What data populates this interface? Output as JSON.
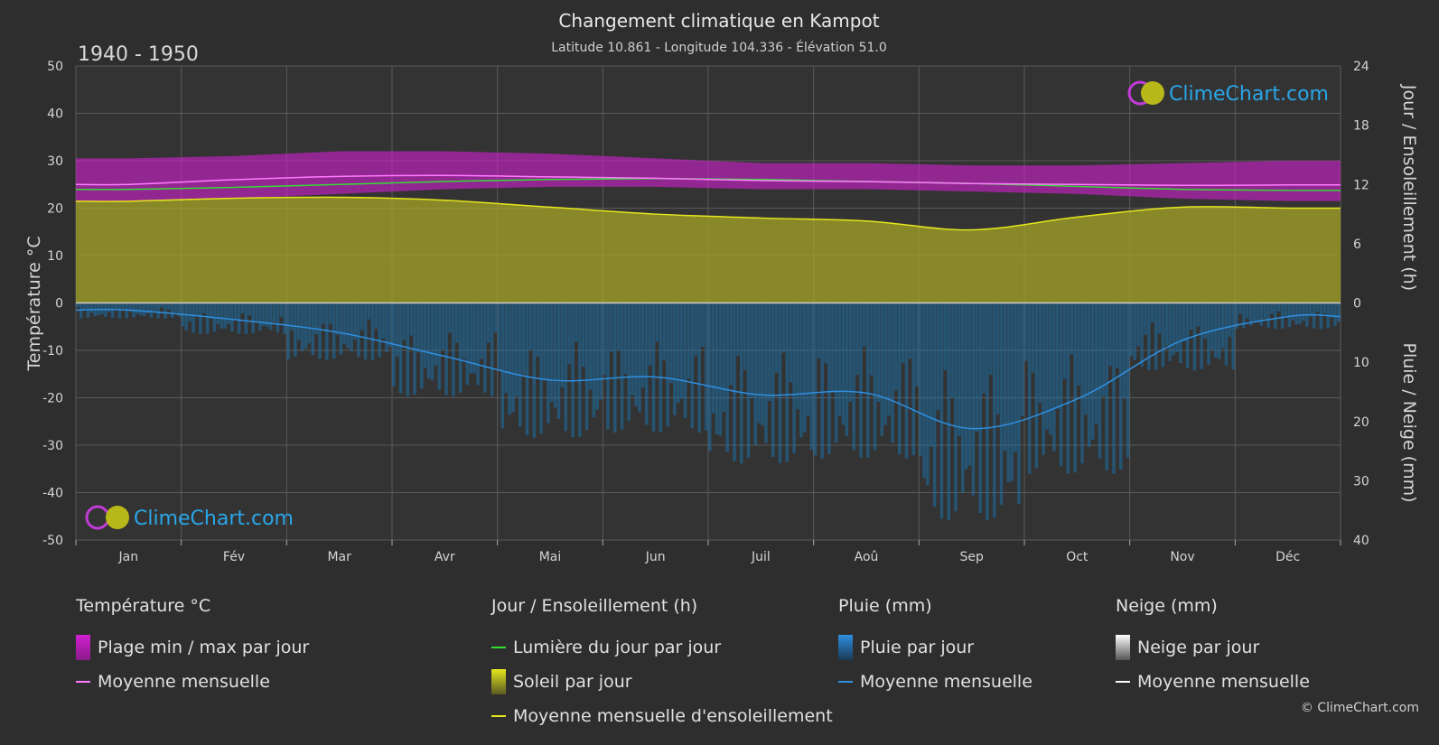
{
  "header": {
    "title": "Changement climatique en Kampot",
    "subtitle": "Latitude 10.861 - Longitude 104.336 - Élévation 51.0",
    "period": "1940 - 1950"
  },
  "brand": {
    "name": "ClimeChart.com",
    "copyright": "© ClimeChart.com"
  },
  "colors": {
    "temp_band": "#d21fd2",
    "temp_mean": "#ff7bff",
    "daylight": "#33dd33",
    "sunshine_fill": "#a6a627",
    "sunshine_mean": "#e6e61e",
    "rain": "#1c6fa8",
    "rain_mean": "#2f8fe0",
    "snow_mean": "#ffffff",
    "brand": "#2aa6e8"
  },
  "chart_data": {
    "type": "area",
    "categories": [
      "Jan",
      "Fév",
      "Mar",
      "Avr",
      "Mai",
      "Jun",
      "Juil",
      "Aoû",
      "Sep",
      "Oct",
      "Nov",
      "Déc"
    ],
    "left_axis": {
      "title": "Température °C",
      "range": [
        -50,
        50
      ],
      "ticks": [
        50,
        40,
        30,
        20,
        10,
        0,
        -10,
        -20,
        -30,
        -40,
        -50
      ]
    },
    "right_axis_top": {
      "title": "Jour / Ensoleillement (h)",
      "range": [
        0,
        24
      ],
      "ticks": [
        24,
        18,
        12,
        6,
        0
      ]
    },
    "right_axis_bottom": {
      "title": "Pluie / Neige (mm)",
      "range": [
        0,
        40
      ],
      "ticks": [
        0,
        10,
        20,
        30,
        40
      ]
    },
    "grid": true,
    "series": [
      {
        "name": "Plage min / max par jour",
        "kind": "band",
        "axis": "temp",
        "min": [
          21.5,
          22.0,
          23.0,
          24.0,
          24.5,
          24.5,
          24.0,
          24.0,
          23.5,
          23.0,
          22.0,
          21.5
        ],
        "max": [
          30.5,
          31.0,
          32.0,
          32.0,
          31.5,
          30.5,
          29.5,
          29.5,
          29.0,
          29.0,
          29.5,
          30.0
        ]
      },
      {
        "name": "Moyenne mensuelle",
        "kind": "line",
        "axis": "temp",
        "color_key": "temp_mean",
        "values": [
          25.0,
          26.0,
          26.7,
          26.9,
          26.6,
          26.3,
          25.8,
          25.6,
          25.2,
          25.0,
          24.8,
          24.9
        ]
      },
      {
        "name": "Lumière du jour par jour",
        "kind": "line",
        "axis": "sun",
        "color_key": "daylight",
        "values": [
          11.5,
          11.7,
          12.0,
          12.3,
          12.5,
          12.6,
          12.5,
          12.3,
          12.1,
          11.8,
          11.5,
          11.4
        ]
      },
      {
        "name": "Soleil par jour",
        "kind": "area",
        "axis": "sun",
        "color_key": "sunshine_fill",
        "values": [
          10.3,
          10.6,
          10.7,
          10.4,
          9.7,
          9.0,
          8.6,
          8.3,
          7.4,
          8.7,
          9.7,
          9.6
        ]
      },
      {
        "name": "Moyenne mensuelle d'ensoleillement",
        "kind": "line",
        "axis": "sun",
        "color_key": "sunshine_mean",
        "values": [
          10.3,
          10.6,
          10.7,
          10.4,
          9.7,
          9.0,
          8.6,
          8.3,
          7.4,
          8.7,
          9.7,
          9.6
        ]
      },
      {
        "name": "Pluie par jour",
        "kind": "bars",
        "axis": "rain",
        "color_key": "rain",
        "values": [
          1.5,
          3.0,
          5.5,
          9.0,
          13.0,
          12.5,
          15.5,
          15.0,
          21.0,
          16.5,
          6.5,
          2.5
        ]
      },
      {
        "name": "Moyenne mensuelle",
        "kind": "line",
        "axis": "rain",
        "color_key": "rain_mean",
        "values": [
          1.2,
          2.8,
          5.0,
          9.0,
          13.0,
          12.5,
          15.5,
          15.2,
          21.2,
          16.2,
          6.3,
          2.3
        ]
      }
    ]
  },
  "legend": {
    "temperature": {
      "heading": "Température °C",
      "items": [
        "Plage min / max par jour",
        "Moyenne mensuelle"
      ]
    },
    "sun": {
      "heading": "Jour / Ensoleillement (h)",
      "items": [
        "Lumière du jour par jour",
        "Soleil par jour",
        "Moyenne mensuelle d'ensoleillement"
      ]
    },
    "rain": {
      "heading": "Pluie (mm)",
      "items": [
        "Pluie par jour",
        "Moyenne mensuelle"
      ]
    },
    "snow": {
      "heading": "Neige (mm)",
      "items": [
        "Neige par jour",
        "Moyenne mensuelle"
      ]
    }
  }
}
